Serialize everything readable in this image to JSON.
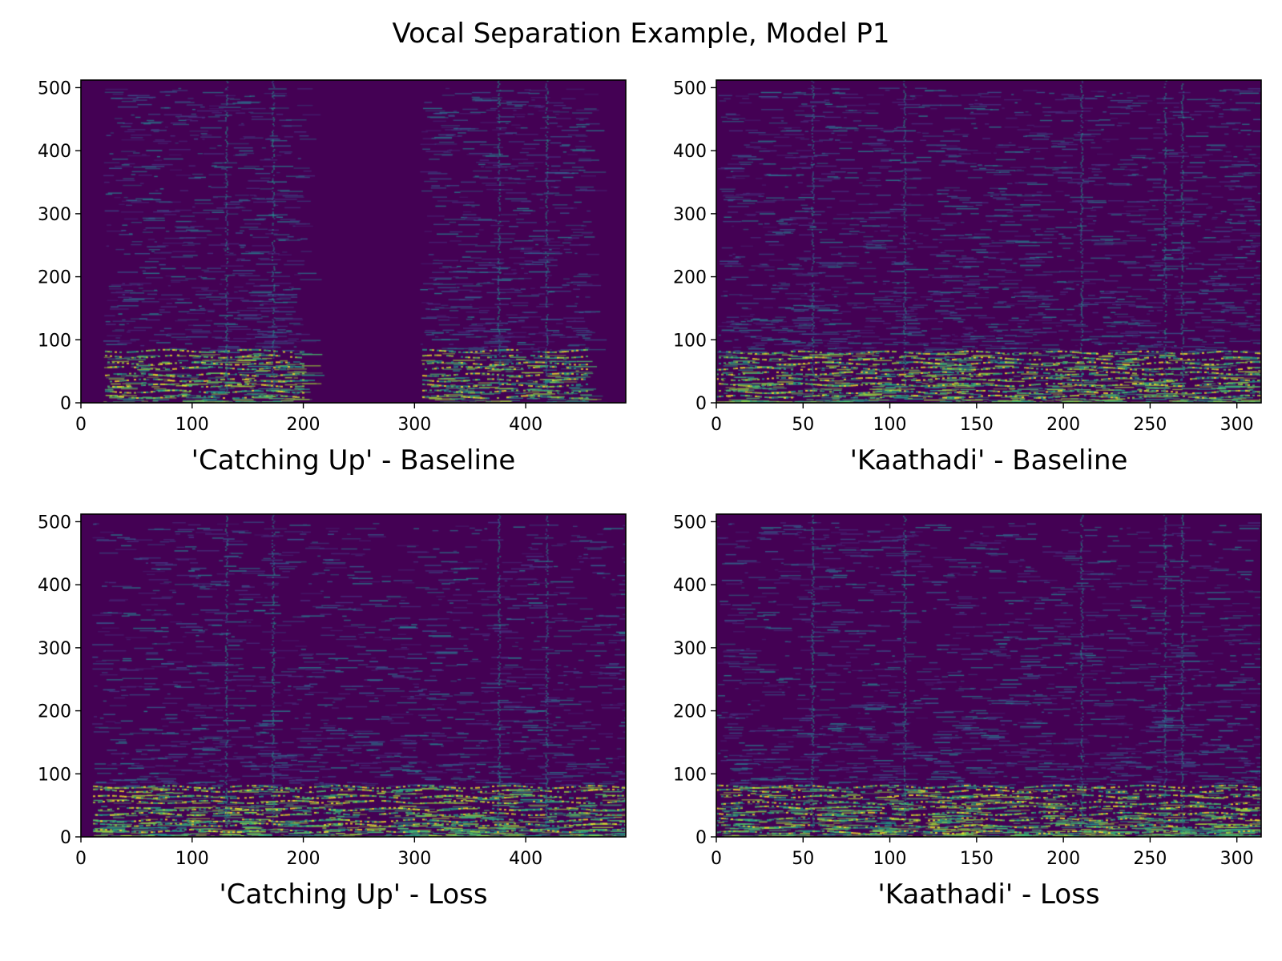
{
  "figure": {
    "title": "Vocal Separation Example, Model P1"
  },
  "colors": {
    "background": "#440154",
    "colormap": [
      "#440154",
      "#46327e",
      "#365c8d",
      "#277f8e",
      "#1fa187",
      "#4ac16d",
      "#a0da39",
      "#fde725"
    ]
  },
  "chart_data": [
    {
      "id": "catching-up-baseline",
      "type": "heatmap",
      "title": "'Catching Up' - Baseline",
      "xlabel": "'Catching Up' - Baseline",
      "ylabel": "",
      "xlim": [
        0,
        490
      ],
      "ylim": [
        0,
        512
      ],
      "xticks": [
        0,
        100,
        200,
        300,
        400
      ],
      "yticks": [
        0,
        100,
        200,
        300,
        400,
        500
      ],
      "colormap": "viridis",
      "active_ranges": [
        [
          20,
          200
        ],
        [
          305,
          455
        ]
      ],
      "vertical_streaks": [
        130,
        172,
        375,
        418
      ]
    },
    {
      "id": "kaathadi-baseline",
      "type": "heatmap",
      "title": "'Kaathadi' - Baseline",
      "xlabel": "'Kaathadi' - Baseline",
      "ylabel": "",
      "xlim": [
        0,
        314
      ],
      "ylim": [
        0,
        512
      ],
      "xticks": [
        0,
        50,
        100,
        150,
        200,
        250,
        300
      ],
      "yticks": [
        0,
        100,
        200,
        300,
        400,
        500
      ],
      "colormap": "viridis",
      "active_ranges": [
        [
          0,
          314
        ]
      ],
      "vertical_streaks": [
        55,
        108,
        210,
        258,
        268
      ]
    },
    {
      "id": "catching-up-loss",
      "type": "heatmap",
      "title": "'Catching Up' - Loss",
      "xlabel": "'Catching Up' - Loss",
      "ylabel": "",
      "xlim": [
        0,
        490
      ],
      "ylim": [
        0,
        512
      ],
      "xticks": [
        0,
        100,
        200,
        300,
        400
      ],
      "yticks": [
        0,
        100,
        200,
        300,
        400,
        500
      ],
      "colormap": "viridis",
      "active_ranges": [
        [
          10,
          490
        ]
      ],
      "vertical_streaks": [
        130,
        172,
        375,
        418
      ]
    },
    {
      "id": "kaathadi-loss",
      "type": "heatmap",
      "title": "'Kaathadi' - Loss",
      "xlabel": "'Kaathadi' - Loss",
      "ylabel": "",
      "xlim": [
        0,
        314
      ],
      "ylim": [
        0,
        512
      ],
      "xticks": [
        0,
        50,
        100,
        150,
        200,
        250,
        300
      ],
      "yticks": [
        0,
        100,
        200,
        300,
        400,
        500
      ],
      "colormap": "viridis",
      "active_ranges": [
        [
          0,
          314
        ]
      ],
      "vertical_streaks": [
        55,
        108,
        210,
        258,
        268
      ]
    }
  ]
}
